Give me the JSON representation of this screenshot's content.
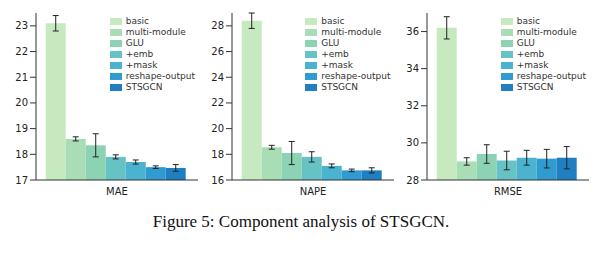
{
  "caption": "Figure 5: Component analysis of STSGCN.",
  "chart_data": [
    {
      "type": "bar",
      "categories": [
        "MAE"
      ],
      "ylim": [
        17,
        23.5
      ],
      "yticks": [
        17,
        18,
        19,
        20,
        21,
        22,
        23
      ],
      "grid": false,
      "legend": "upper right",
      "series": [
        {
          "name": "basic",
          "color": "#c7e9c0",
          "values": [
            23.1
          ],
          "errors": [
            0.3
          ]
        },
        {
          "name": "multi-module",
          "color": "#a8ddb5",
          "values": [
            18.6
          ],
          "errors": [
            0.08
          ]
        },
        {
          "name": "GLU",
          "color": "#8cd3b4",
          "values": [
            18.35
          ],
          "errors": [
            0.45
          ]
        },
        {
          "name": "+emb",
          "color": "#66c2c4",
          "values": [
            17.9
          ],
          "errors": [
            0.08
          ]
        },
        {
          "name": "+mask",
          "color": "#4bb3cf",
          "values": [
            17.7
          ],
          "errors": [
            0.08
          ]
        },
        {
          "name": "reshape-output",
          "color": "#2f9bd0",
          "values": [
            17.5
          ],
          "errors": [
            0.05
          ]
        },
        {
          "name": "STSGCN",
          "color": "#1f7fc0",
          "values": [
            17.47
          ],
          "errors": [
            0.13
          ]
        }
      ]
    },
    {
      "type": "bar",
      "categories": [
        "NAPE"
      ],
      "ylim": [
        16,
        29
      ],
      "yticks": [
        16,
        18,
        20,
        22,
        24,
        26,
        28
      ],
      "grid": false,
      "legend": "upper right",
      "series": [
        {
          "name": "basic",
          "color": "#c7e9c0",
          "values": [
            28.4
          ],
          "errors": [
            0.6
          ]
        },
        {
          "name": "multi-module",
          "color": "#a8ddb5",
          "values": [
            18.55
          ],
          "errors": [
            0.15
          ]
        },
        {
          "name": "GLU",
          "color": "#8cd3b4",
          "values": [
            18.1
          ],
          "errors": [
            0.9
          ]
        },
        {
          "name": "+emb",
          "color": "#66c2c4",
          "values": [
            17.8
          ],
          "errors": [
            0.4
          ]
        },
        {
          "name": "+mask",
          "color": "#4bb3cf",
          "values": [
            17.1
          ],
          "errors": [
            0.15
          ]
        },
        {
          "name": "reshape-output",
          "color": "#2f9bd0",
          "values": [
            16.75
          ],
          "errors": [
            0.1
          ]
        },
        {
          "name": "STSGCN",
          "color": "#1f7fc0",
          "values": [
            16.75
          ],
          "errors": [
            0.2
          ]
        }
      ]
    },
    {
      "type": "bar",
      "categories": [
        "RMSE"
      ],
      "ylim": [
        28,
        37
      ],
      "yticks": [
        28,
        30,
        32,
        34,
        36
      ],
      "grid": false,
      "legend": "upper right",
      "series": [
        {
          "name": "basic",
          "color": "#c7e9c0",
          "values": [
            36.2
          ],
          "errors": [
            0.6
          ]
        },
        {
          "name": "multi-module",
          "color": "#a8ddb5",
          "values": [
            29.0
          ],
          "errors": [
            0.2
          ]
        },
        {
          "name": "GLU",
          "color": "#8cd3b4",
          "values": [
            29.4
          ],
          "errors": [
            0.5
          ]
        },
        {
          "name": "+emb",
          "color": "#66c2c4",
          "values": [
            29.05
          ],
          "errors": [
            0.5
          ]
        },
        {
          "name": "+mask",
          "color": "#4bb3cf",
          "values": [
            29.2
          ],
          "errors": [
            0.4
          ]
        },
        {
          "name": "reshape-output",
          "color": "#2f9bd0",
          "values": [
            29.15
          ],
          "errors": [
            0.5
          ]
        },
        {
          "name": "STSGCN",
          "color": "#1f7fc0",
          "values": [
            29.2
          ],
          "errors": [
            0.6
          ]
        }
      ]
    }
  ]
}
